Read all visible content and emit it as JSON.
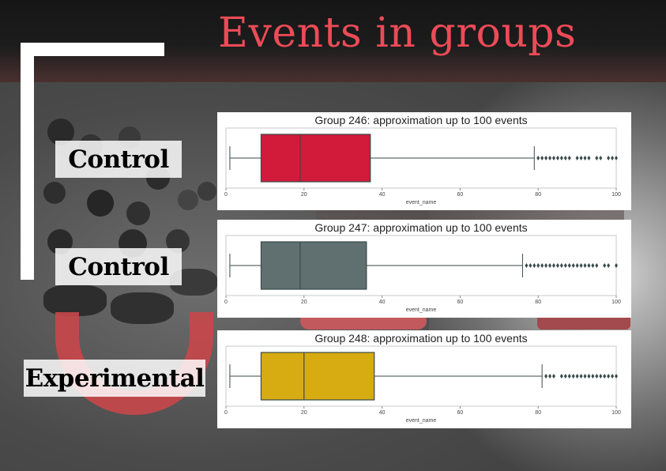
{
  "slide": {
    "title": "Events in groups",
    "title_color": "#ec4b57",
    "group_labels": [
      "Control",
      "Control",
      "Experimental"
    ]
  },
  "chart_data": [
    {
      "type": "box",
      "title": "Group 246: approximation up to 100 events",
      "xlabel": "event_name",
      "ylabel": "",
      "xlim": [
        0,
        100
      ],
      "x_ticks": [
        0,
        20,
        40,
        60,
        80,
        100
      ],
      "orientation": "horizontal",
      "color": "#d21a3b",
      "stats": {
        "whisker_low": 1,
        "q1": 9,
        "median": 19,
        "q3": 37,
        "whisker_high": 79
      },
      "outliers": [
        80,
        81,
        82,
        83,
        84,
        85,
        86,
        87,
        88,
        90,
        91,
        92,
        93,
        95,
        96,
        98,
        99,
        100
      ]
    },
    {
      "type": "box",
      "title": "Group 247: approximation up to 100 events",
      "xlabel": "event_name",
      "ylabel": "",
      "xlim": [
        0,
        100
      ],
      "x_ticks": [
        0,
        20,
        40,
        60,
        80,
        100
      ],
      "orientation": "horizontal",
      "color": "#607070",
      "stats": {
        "whisker_low": 1,
        "q1": 9,
        "median": 19,
        "q3": 36,
        "whisker_high": 76
      },
      "outliers": [
        77,
        78,
        79,
        80,
        81,
        82,
        83,
        84,
        85,
        86,
        87,
        88,
        89,
        90,
        91,
        92,
        93,
        94,
        95,
        97,
        98,
        100
      ]
    },
    {
      "type": "box",
      "title": "Group 248: approximation up to 100 events",
      "xlabel": "event_name",
      "ylabel": "",
      "xlim": [
        0,
        100
      ],
      "x_ticks": [
        0,
        20,
        40,
        60,
        80,
        100
      ],
      "orientation": "horizontal",
      "color": "#d6ac12",
      "stats": {
        "whisker_low": 1,
        "q1": 9,
        "median": 20,
        "q3": 38,
        "whisker_high": 81
      },
      "outliers": [
        82,
        83,
        84,
        86,
        87,
        88,
        89,
        90,
        91,
        92,
        93,
        94,
        95,
        96,
        97,
        98,
        99,
        100
      ]
    }
  ]
}
